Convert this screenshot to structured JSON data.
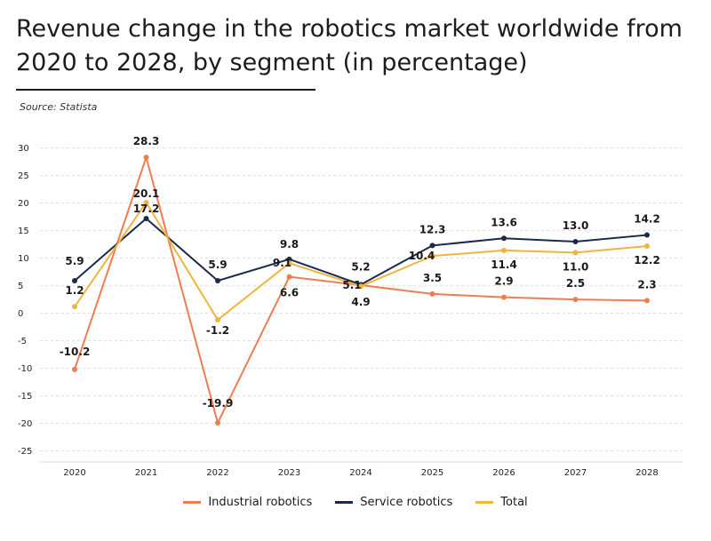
{
  "header": {
    "title": "Revenue change in the robotics market worldwide from 2020 to 2028, by segment (in percentage)",
    "source": "Source: Statista"
  },
  "chart_data": {
    "type": "line",
    "title": "Revenue change in the robotics market worldwide from 2020 to 2028, by segment (in percentage)",
    "xlabel": "",
    "ylabel": "",
    "categories": [
      "2020",
      "2021",
      "2022",
      "2023",
      "2024",
      "2025",
      "2026",
      "2027",
      "2028"
    ],
    "yticks": [
      30,
      25,
      20,
      15,
      10,
      5,
      0,
      -5,
      -10,
      -15,
      -20,
      -25
    ],
    "ylim": [
      -27,
      33
    ],
    "grid": true,
    "legend_position": "bottom",
    "series": [
      {
        "name": "Industrial robotics",
        "color": "#f07c4f",
        "values": [
          -10.2,
          28.3,
          -19.9,
          6.6,
          5.1,
          3.5,
          2.9,
          2.5,
          2.3
        ],
        "labels": [
          "-10.2",
          "28.3",
          "-19.9",
          "6.6",
          "5.1",
          "3.5",
          "2.9",
          "2.5",
          "2.3"
        ]
      },
      {
        "name": "Service robotics",
        "color": "#1b2a4a",
        "values": [
          5.9,
          17.2,
          5.9,
          9.8,
          5.2,
          12.3,
          13.6,
          13.0,
          14.2
        ],
        "labels": [
          "5.9",
          "17.2",
          "5.9",
          "9.8",
          "5.2",
          "12.3",
          "13.6",
          "13.0",
          "14.2"
        ]
      },
      {
        "name": "Total",
        "color": "#f0b43c",
        "values": [
          1.2,
          20.1,
          -1.2,
          9.1,
          4.9,
          10.4,
          11.4,
          11.0,
          12.2
        ],
        "labels": [
          "1.2",
          "20.1",
          "-1.2",
          "9.1",
          "4.9",
          "10.4",
          "11.4",
          "11.0",
          "12.2"
        ]
      }
    ]
  }
}
